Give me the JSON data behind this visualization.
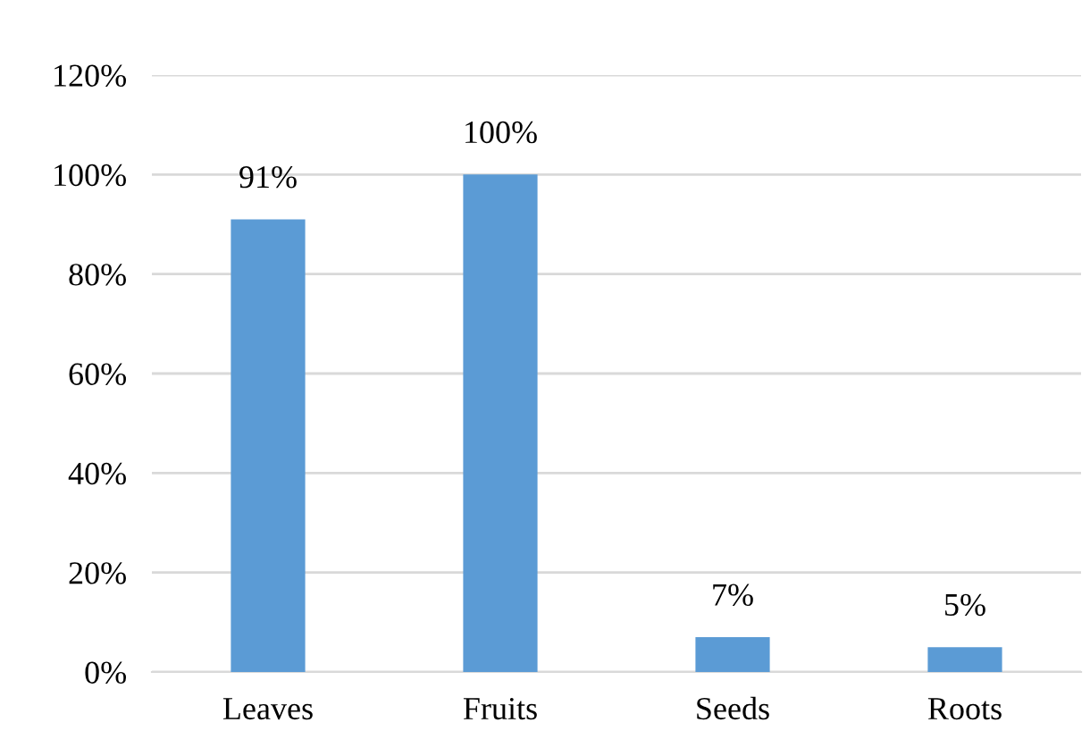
{
  "chart_data": {
    "type": "bar",
    "categories": [
      "Leaves",
      "Fruits",
      "Seeds",
      "Roots"
    ],
    "values": [
      91,
      100,
      7,
      5
    ],
    "color": "#5b9bd5",
    "value_labels": [
      "91%",
      "100%",
      "7%",
      "5%"
    ],
    "ylim": [
      0,
      120
    ],
    "yticks": [
      {
        "value": 0,
        "label": "0%"
      },
      {
        "value": 20,
        "label": "20%"
      },
      {
        "value": 40,
        "label": "40%"
      },
      {
        "value": 60,
        "label": "60%"
      },
      {
        "value": 80,
        "label": "80%"
      },
      {
        "value": 100,
        "label": "100%"
      },
      {
        "value": 120,
        "label": "120%"
      }
    ],
    "grid": "y"
  }
}
